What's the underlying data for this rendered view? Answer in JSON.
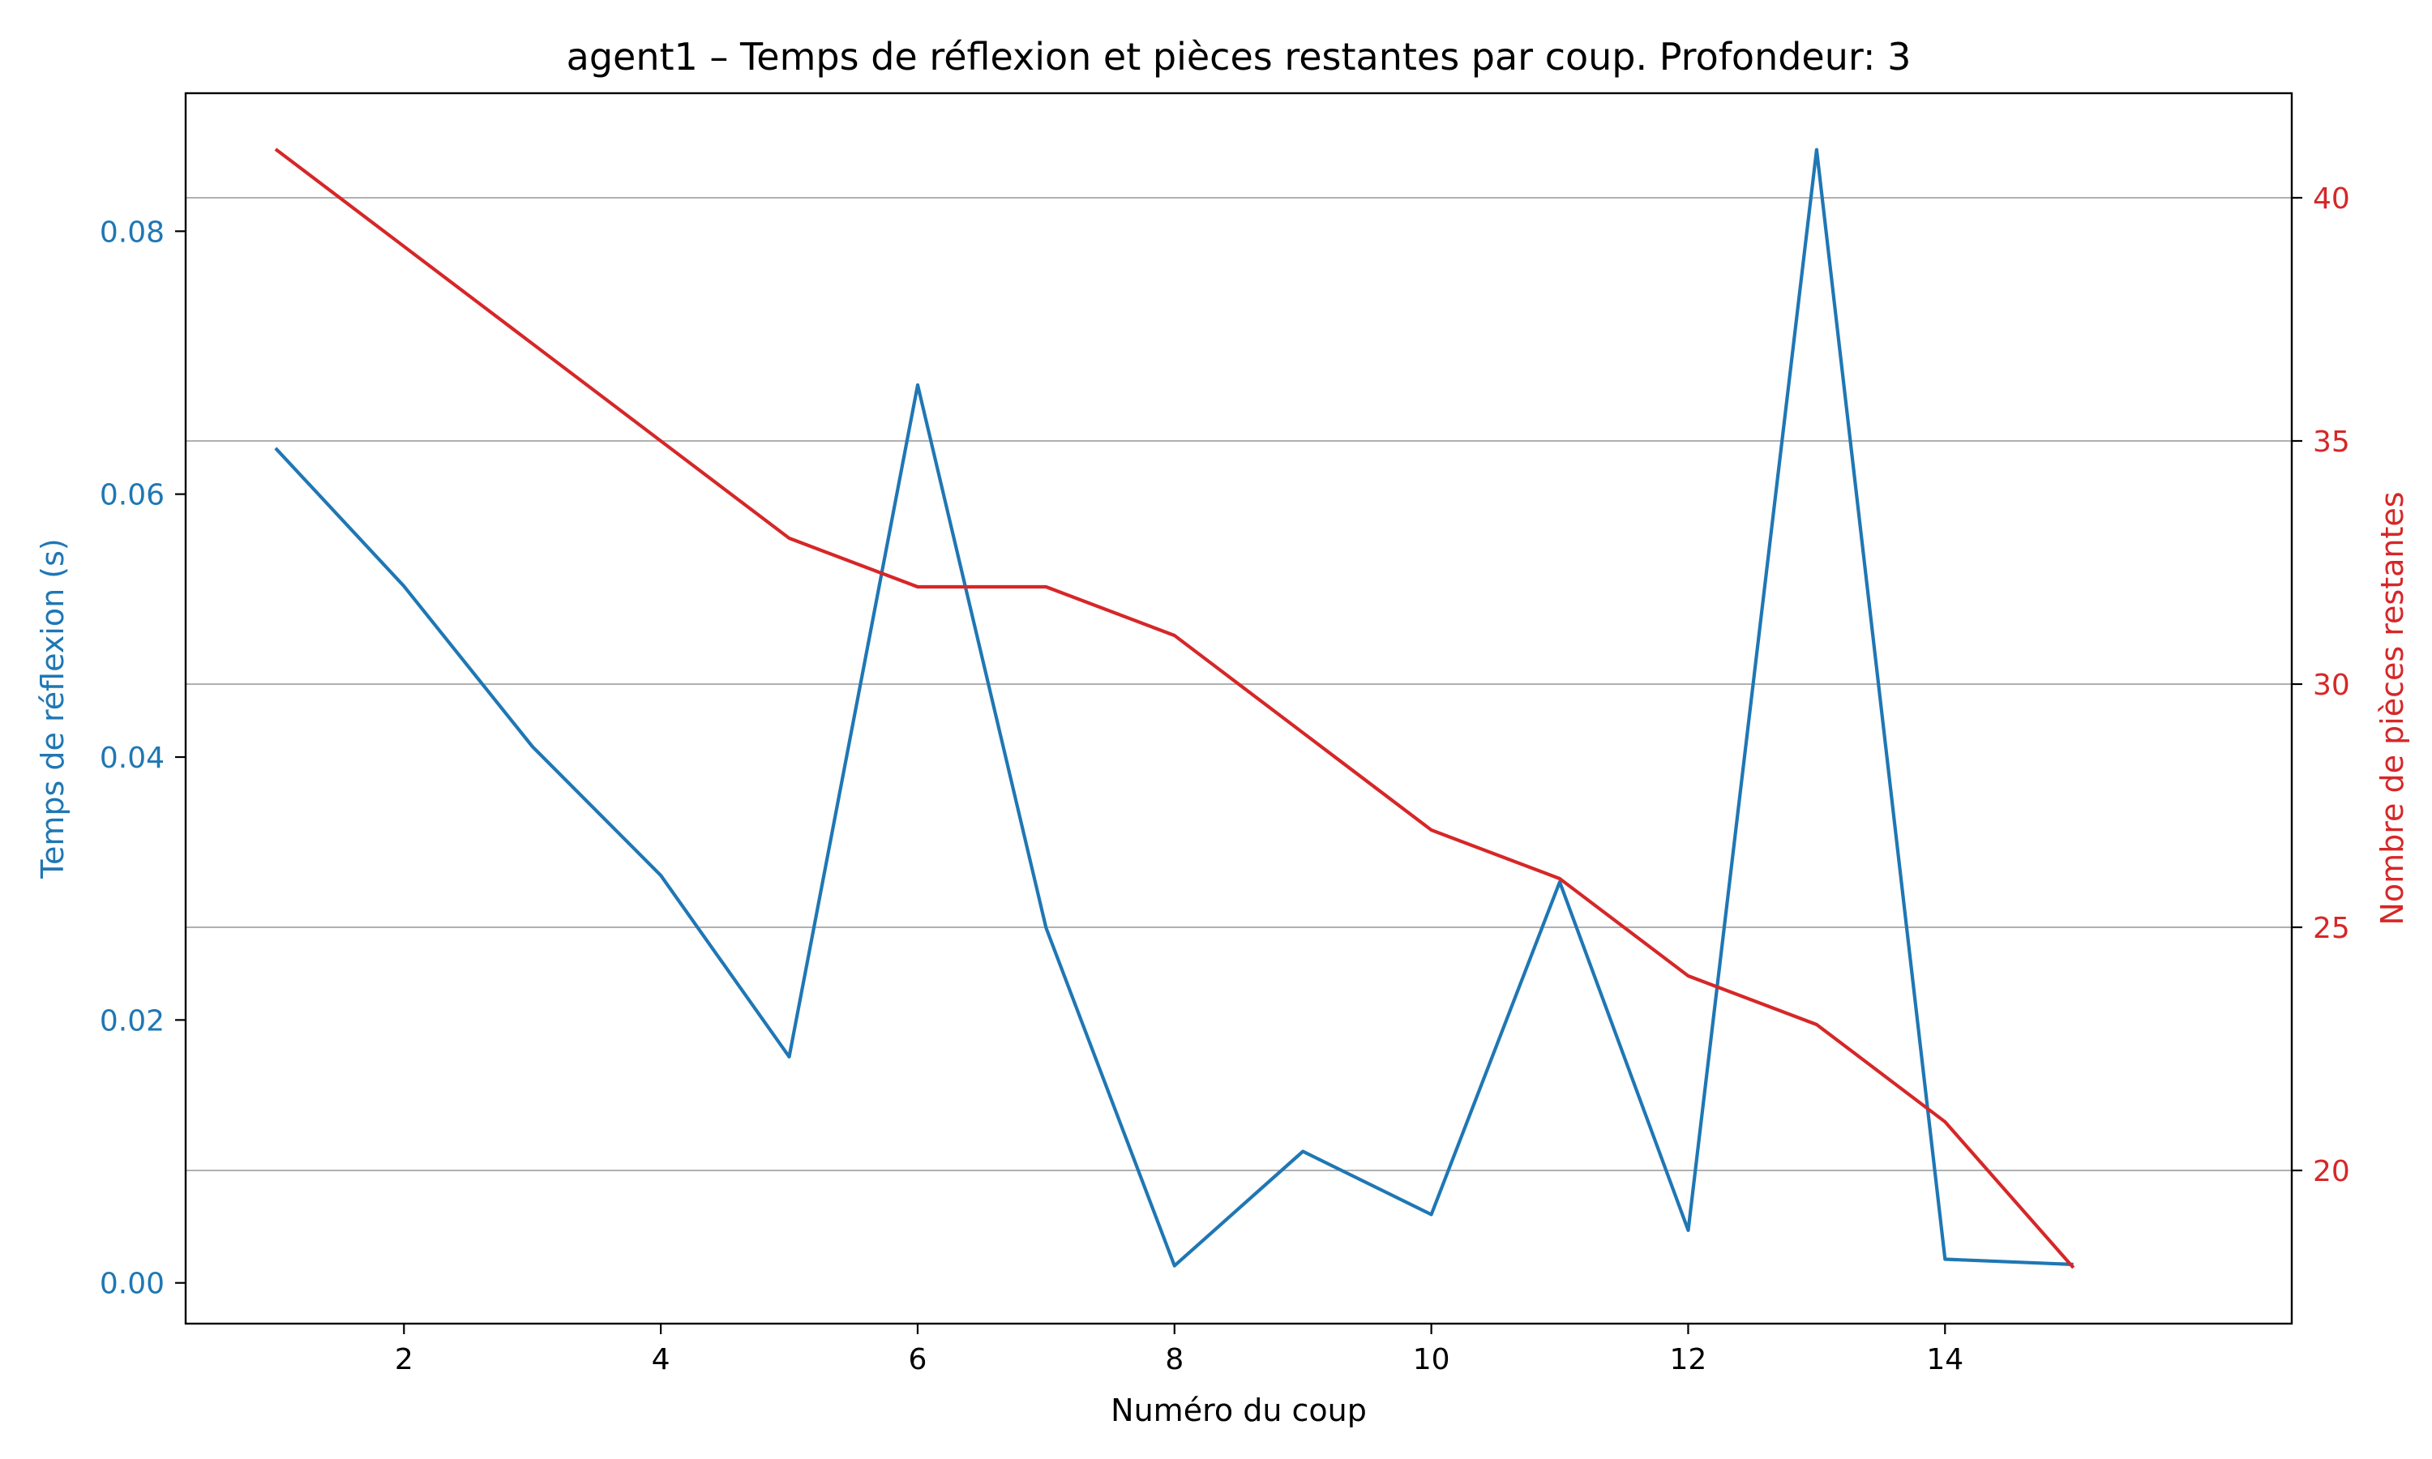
{
  "chart_data": {
    "type": "line",
    "title": "agent1 – Temps de réflexion et pièces restantes par coup. Profondeur: 3",
    "xlabel": "Numéro du coup",
    "ylabel_left": "Temps de réflexion (s)",
    "ylabel_right": "Nombre de pièces restantes",
    "xlim": [
      0.3,
      16.7
    ],
    "ylim_left": [
      -0.0031,
      0.0905
    ],
    "ylim_right": [
      16.85,
      42.15
    ],
    "x_ticks": [
      2,
      4,
      6,
      8,
      10,
      12,
      14
    ],
    "x_tick_labels": [
      "2",
      "4",
      "6",
      "8",
      "10",
      "12",
      "14"
    ],
    "y_left_ticks": [
      0,
      0.02,
      0.04,
      0.06,
      0.08
    ],
    "y_left_tick_labels": [
      "0.00",
      "0.02",
      "0.04",
      "0.06",
      "0.08"
    ],
    "y_right_ticks": [
      20,
      25,
      30,
      35,
      40
    ],
    "y_right_tick_labels": [
      "20",
      "25",
      "30",
      "35",
      "40"
    ],
    "grid": "horizontal lines at right-axis ticks",
    "colors": {
      "left": "#1f77b4",
      "right": "#d62728",
      "grid": "#b0b0b0",
      "axes": "#000000"
    },
    "x": [
      1,
      2,
      3,
      4,
      5,
      6,
      7,
      8,
      9,
      10,
      11,
      12,
      13,
      14,
      15
    ],
    "series": [
      {
        "axis": "left",
        "color": "#1f77b4",
        "values": [
          0.0635,
          0.053,
          0.0408,
          0.031,
          0.0172,
          0.0683,
          0.027,
          0.0013,
          0.01,
          0.0052,
          0.0305,
          0.004,
          0.0862,
          0.0018,
          0.0014
        ]
      },
      {
        "axis": "right",
        "color": "#d62728",
        "values": [
          41,
          39,
          37,
          35,
          33,
          32,
          32,
          31,
          29,
          27,
          26,
          24,
          23,
          21,
          18
        ]
      }
    ]
  }
}
